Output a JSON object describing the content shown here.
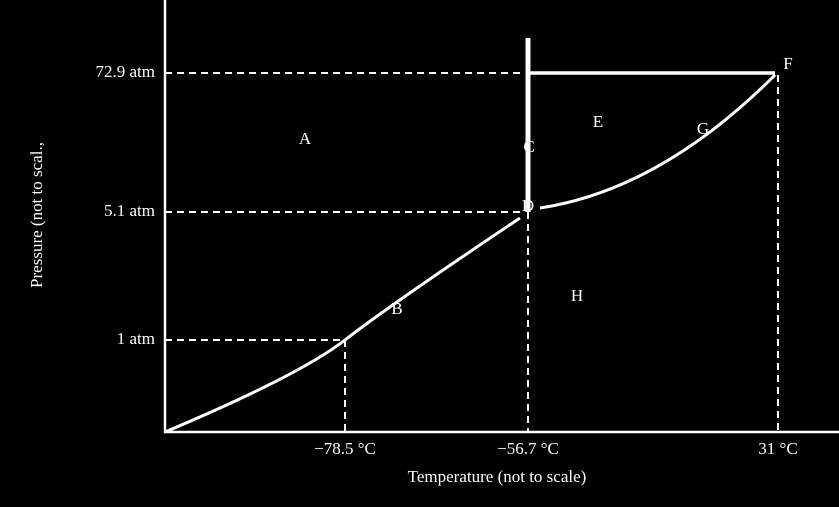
{
  "axes": {
    "y_label": "Pressure (not to scal.,",
    "x_label": "Temperature (not to scale)",
    "y_ticks": [
      "72.9 atm",
      "5.1 atm",
      "1 atm"
    ],
    "x_ticks": [
      "−78.5 °C",
      "−56.7 °C",
      "31 °C"
    ]
  },
  "regions": [
    "A",
    "B",
    "C",
    "D",
    "E",
    "F",
    "G",
    "H"
  ]
}
